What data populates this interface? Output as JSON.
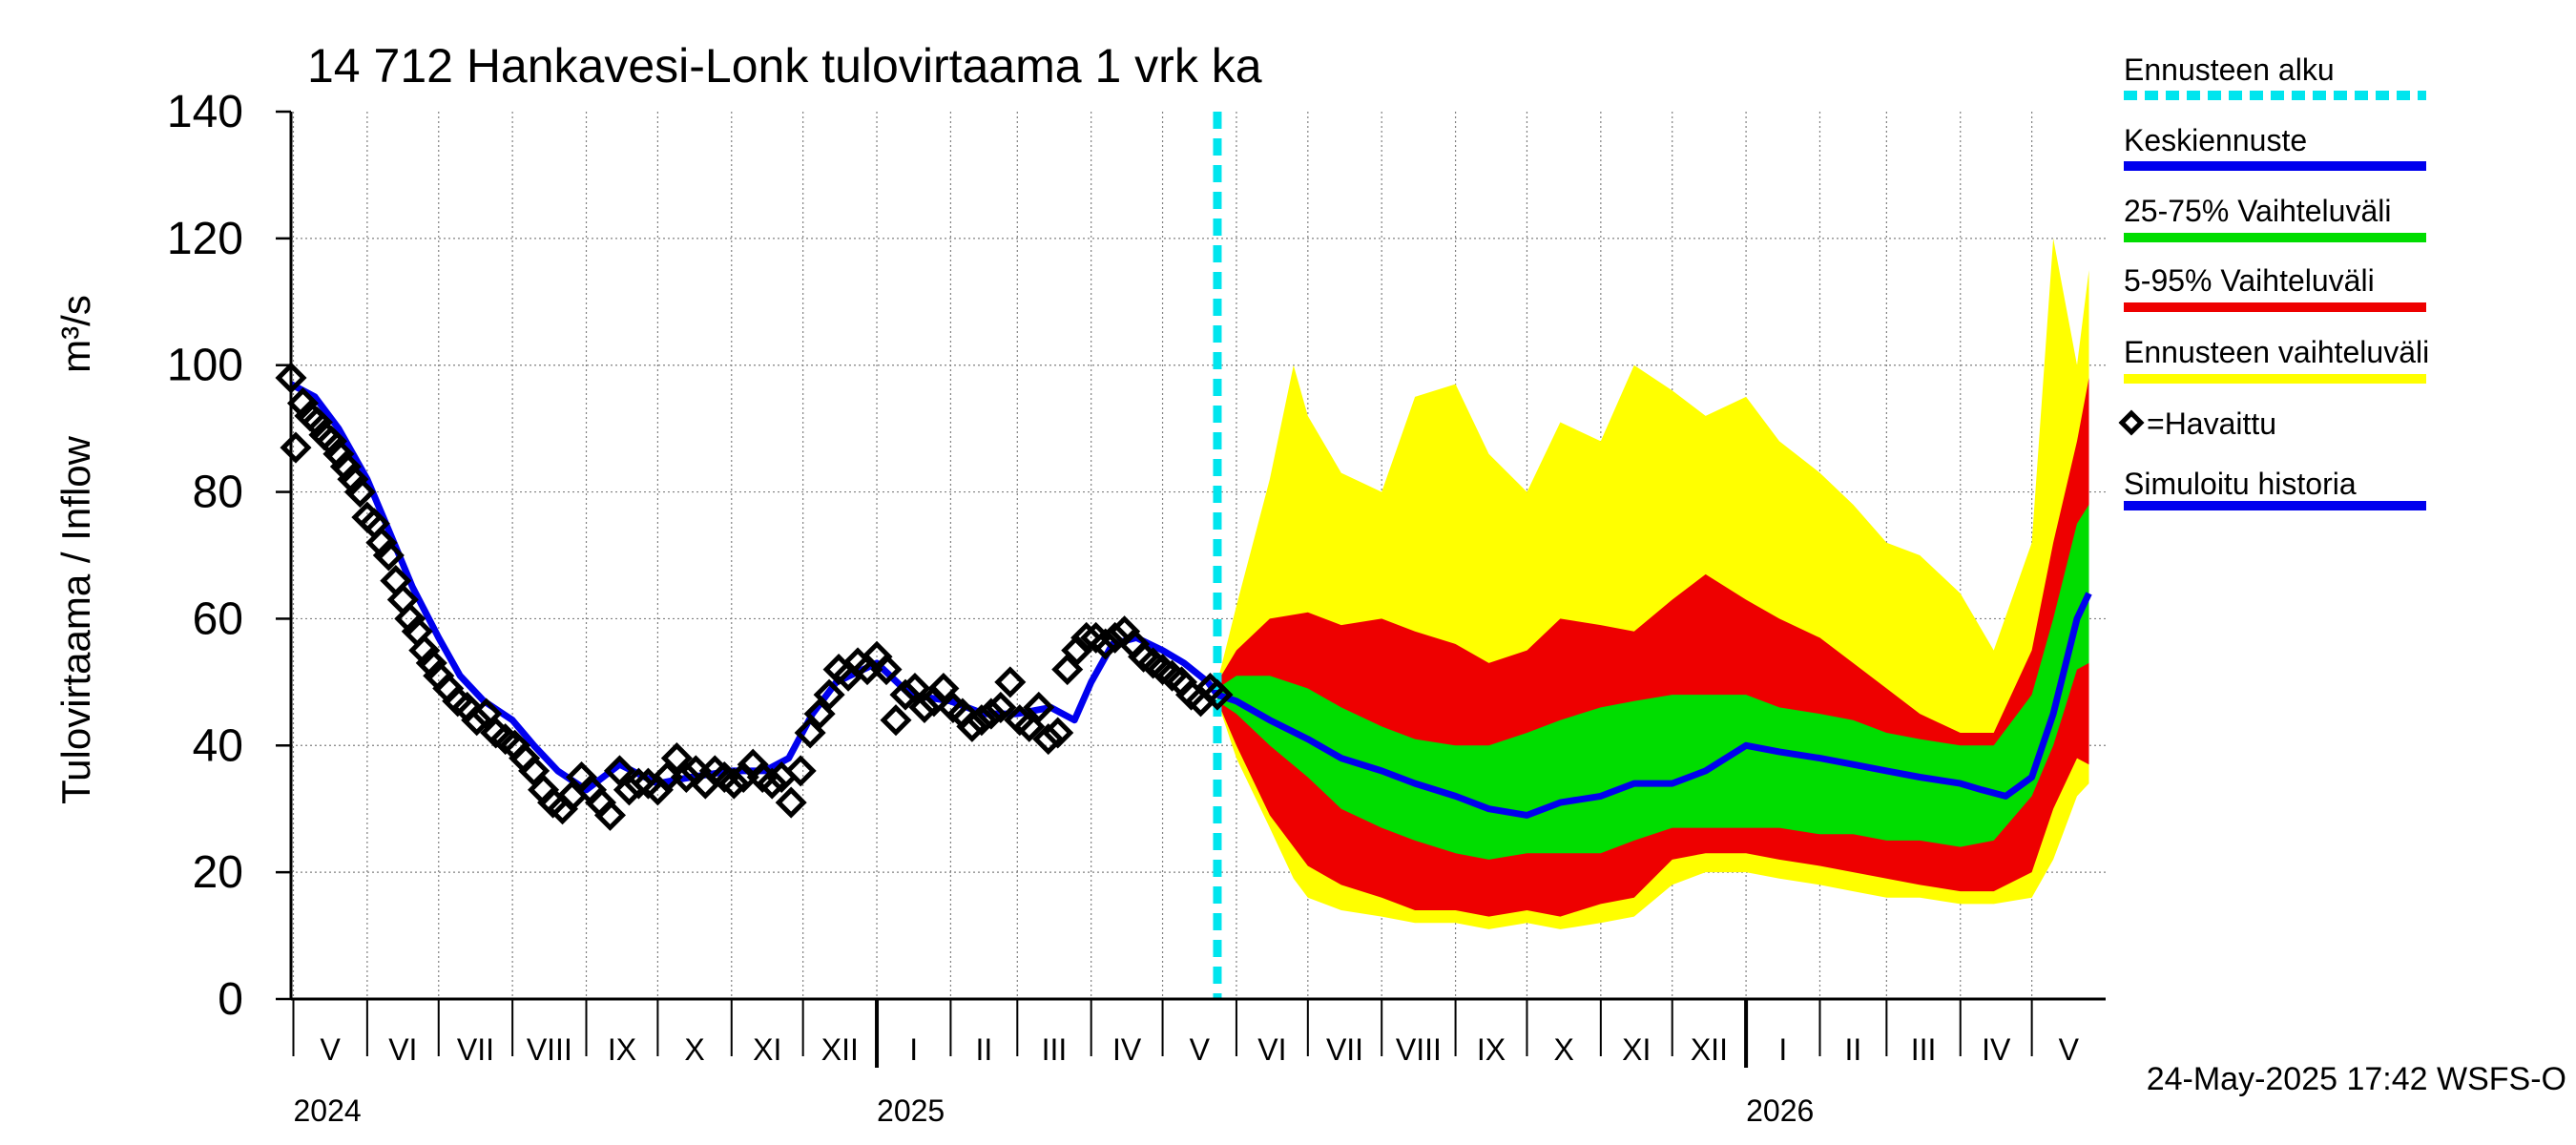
{
  "chart_data": {
    "type": "area",
    "title": "14 712 Hankavesi-Lonk tulovirtaama 1 vrk ka",
    "ylabel": "Tulovirtaama / Inflow",
    "yunit": "m³/s",
    "ylim": [
      0,
      140
    ],
    "yticks": [
      0,
      20,
      40,
      60,
      80,
      100,
      120,
      140
    ],
    "xlim": [
      "2024-04-30",
      "2026-06-01"
    ],
    "grid": true,
    "forecast_start": "2025-05-24",
    "month_labels": [
      {
        "label": "V",
        "start": "2024-05-01",
        "end": "2024-06-01"
      },
      {
        "label": "VI",
        "start": "2024-06-01",
        "end": "2024-07-01"
      },
      {
        "label": "VII",
        "start": "2024-07-01",
        "end": "2024-08-01"
      },
      {
        "label": "VIII",
        "start": "2024-08-01",
        "end": "2024-09-01"
      },
      {
        "label": "IX",
        "start": "2024-09-01",
        "end": "2024-10-01"
      },
      {
        "label": "X",
        "start": "2024-10-01",
        "end": "2024-11-01"
      },
      {
        "label": "XI",
        "start": "2024-11-01",
        "end": "2024-12-01"
      },
      {
        "label": "XII",
        "start": "2024-12-01",
        "end": "2025-01-01"
      },
      {
        "label": "I",
        "start": "2025-01-01",
        "end": "2025-02-01"
      },
      {
        "label": "II",
        "start": "2025-02-01",
        "end": "2025-03-01"
      },
      {
        "label": "III",
        "start": "2025-03-01",
        "end": "2025-04-01"
      },
      {
        "label": "IV",
        "start": "2025-04-01",
        "end": "2025-05-01"
      },
      {
        "label": "V",
        "start": "2025-05-01",
        "end": "2025-06-01"
      },
      {
        "label": "VI",
        "start": "2025-06-01",
        "end": "2025-07-01"
      },
      {
        "label": "VII",
        "start": "2025-07-01",
        "end": "2025-08-01"
      },
      {
        "label": "VIII",
        "start": "2025-08-01",
        "end": "2025-09-01"
      },
      {
        "label": "IX",
        "start": "2025-09-01",
        "end": "2025-10-01"
      },
      {
        "label": "X",
        "start": "2025-10-01",
        "end": "2025-11-01"
      },
      {
        "label": "XI",
        "start": "2025-11-01",
        "end": "2025-12-01"
      },
      {
        "label": "XII",
        "start": "2025-12-01",
        "end": "2026-01-01"
      },
      {
        "label": "I",
        "start": "2026-01-01",
        "end": "2026-02-01"
      },
      {
        "label": "II",
        "start": "2026-02-01",
        "end": "2026-03-01"
      },
      {
        "label": "III",
        "start": "2026-03-01",
        "end": "2026-04-01"
      },
      {
        "label": "IV",
        "start": "2026-04-01",
        "end": "2026-05-01"
      },
      {
        "label": "V",
        "start": "2026-05-01",
        "end": "2026-06-01"
      }
    ],
    "year_labels": [
      {
        "label": "2024",
        "date": "2024-05-01"
      },
      {
        "label": "2025",
        "date": "2025-01-01"
      },
      {
        "label": "2026",
        "date": "2026-01-01"
      }
    ],
    "legend": {
      "placement": "right",
      "items": [
        {
          "label": "Ennusteen alku",
          "color": "#00e5ee",
          "style": "dashed"
        },
        {
          "label": "Keskiennuste",
          "color": "#0000ee",
          "style": "solid"
        },
        {
          "label": "25-75% Vaihteluväli",
          "color": "#00dd00",
          "style": "solid"
        },
        {
          "label": "5-95% Vaihteluväli",
          "color": "#ee0000",
          "style": "solid"
        },
        {
          "label": "Ennusteen vaihteluväli",
          "color": "#ffff00",
          "style": "solid"
        },
        {
          "label": "=Havaittu",
          "color": "#000000",
          "style": "marker"
        },
        {
          "label": "Simuloitu historia",
          "color": "#0000ee",
          "style": "solid"
        }
      ]
    },
    "series": [
      {
        "name": "Ennusteen vaihteluväli",
        "color": "#ffff00",
        "kind": "band",
        "x": [
          "2025-05-24",
          "2025-06-01",
          "2025-06-15",
          "2025-06-25",
          "2025-07-01",
          "2025-07-15",
          "2025-08-01",
          "2025-08-15",
          "2025-09-01",
          "2025-09-15",
          "2025-10-01",
          "2025-10-15",
          "2025-11-01",
          "2025-11-15",
          "2025-12-01",
          "2025-12-15",
          "2026-01-01",
          "2026-01-15",
          "2026-02-01",
          "2026-02-15",
          "2026-03-01",
          "2026-03-15",
          "2026-04-01",
          "2026-04-15",
          "2026-05-01",
          "2026-05-10",
          "2026-05-20",
          "2026-05-25"
        ],
        "low": [
          47,
          38,
          27,
          19,
          16,
          14,
          13,
          12,
          12,
          11,
          12,
          11,
          12,
          13,
          18,
          20,
          20,
          19,
          18,
          17,
          16,
          16,
          15,
          15,
          16,
          22,
          32,
          34
        ],
        "high": [
          50,
          62,
          82,
          100,
          92,
          83,
          80,
          95,
          97,
          86,
          80,
          91,
          88,
          100,
          96,
          92,
          95,
          88,
          83,
          78,
          72,
          70,
          64,
          55,
          72,
          120,
          100,
          115
        ]
      },
      {
        "name": "5-95% Vaihteluväli",
        "color": "#ee0000",
        "kind": "band",
        "x": [
          "2025-05-24",
          "2025-06-01",
          "2025-06-15",
          "2025-07-01",
          "2025-07-15",
          "2025-08-01",
          "2025-08-15",
          "2025-09-01",
          "2025-09-15",
          "2025-10-01",
          "2025-10-15",
          "2025-11-01",
          "2025-11-15",
          "2025-12-01",
          "2025-12-15",
          "2026-01-01",
          "2026-01-15",
          "2026-02-01",
          "2026-02-15",
          "2026-03-01",
          "2026-03-15",
          "2026-04-01",
          "2026-04-15",
          "2026-05-01",
          "2026-05-10",
          "2026-05-20",
          "2026-05-25"
        ],
        "low": [
          47,
          40,
          29,
          21,
          18,
          16,
          14,
          14,
          13,
          14,
          13,
          15,
          16,
          22,
          23,
          23,
          22,
          21,
          20,
          19,
          18,
          17,
          17,
          20,
          30,
          38,
          37
        ],
        "high": [
          50,
          55,
          60,
          61,
          59,
          60,
          58,
          56,
          53,
          55,
          60,
          59,
          58,
          63,
          67,
          63,
          60,
          57,
          53,
          49,
          45,
          42,
          42,
          55,
          72,
          88,
          98
        ]
      },
      {
        "name": "25-75% Vaihteluväli",
        "color": "#00dd00",
        "kind": "band",
        "x": [
          "2025-05-24",
          "2025-06-01",
          "2025-06-15",
          "2025-07-01",
          "2025-07-15",
          "2025-08-01",
          "2025-08-15",
          "2025-09-01",
          "2025-09-15",
          "2025-10-01",
          "2025-10-15",
          "2025-11-01",
          "2025-11-15",
          "2025-12-01",
          "2025-12-15",
          "2026-01-01",
          "2026-01-15",
          "2026-02-01",
          "2026-02-15",
          "2026-03-01",
          "2026-03-15",
          "2026-04-01",
          "2026-04-15",
          "2026-05-01",
          "2026-05-10",
          "2026-05-20",
          "2026-05-25"
        ],
        "low": [
          47,
          45,
          40,
          35,
          30,
          27,
          25,
          23,
          22,
          23,
          23,
          23,
          25,
          27,
          27,
          27,
          27,
          26,
          26,
          25,
          25,
          24,
          25,
          32,
          40,
          52,
          53
        ],
        "high": [
          49,
          51,
          51,
          49,
          46,
          43,
          41,
          40,
          40,
          42,
          44,
          46,
          47,
          48,
          48,
          48,
          46,
          45,
          44,
          42,
          41,
          40,
          40,
          48,
          60,
          75,
          78
        ]
      },
      {
        "name": "Keskiennuste",
        "color": "#0000ee",
        "kind": "line",
        "x": [
          "2025-05-24",
          "2025-06-01",
          "2025-06-15",
          "2025-07-01",
          "2025-07-15",
          "2025-08-01",
          "2025-08-15",
          "2025-09-01",
          "2025-09-15",
          "2025-10-01",
          "2025-10-15",
          "2025-11-01",
          "2025-11-15",
          "2025-12-01",
          "2025-12-15",
          "2026-01-01",
          "2026-01-15",
          "2026-02-01",
          "2026-02-15",
          "2026-03-01",
          "2026-03-15",
          "2026-04-01",
          "2026-04-10",
          "2026-04-20",
          "2026-05-01",
          "2026-05-10",
          "2026-05-20",
          "2026-05-25"
        ],
        "y": [
          48,
          47,
          44,
          41,
          38,
          36,
          34,
          32,
          30,
          29,
          31,
          32,
          34,
          34,
          36,
          40,
          39,
          38,
          37,
          36,
          35,
          34,
          33,
          32,
          35,
          45,
          60,
          64
        ]
      },
      {
        "name": "Simuloitu historia",
        "color": "#0000ee",
        "kind": "line",
        "x": [
          "2024-04-30",
          "2024-05-10",
          "2024-05-20",
          "2024-06-01",
          "2024-06-10",
          "2024-06-20",
          "2024-07-01",
          "2024-07-10",
          "2024-07-20",
          "2024-08-01",
          "2024-08-10",
          "2024-08-20",
          "2024-09-01",
          "2024-09-15",
          "2024-10-01",
          "2024-10-15",
          "2024-11-01",
          "2024-11-15",
          "2024-11-25",
          "2024-12-05",
          "2024-12-15",
          "2025-01-01",
          "2025-01-15",
          "2025-02-01",
          "2025-02-15",
          "2025-03-01",
          "2025-03-15",
          "2025-03-25",
          "2025-04-01",
          "2025-04-10",
          "2025-04-20",
          "2025-05-01",
          "2025-05-10",
          "2025-05-20",
          "2025-05-24"
        ],
        "y": [
          97,
          95,
          90,
          82,
          74,
          65,
          57,
          51,
          47,
          44,
          40,
          36,
          33,
          37,
          34,
          35,
          36,
          36,
          38,
          45,
          50,
          53,
          48,
          47,
          45,
          45,
          46,
          44,
          50,
          56,
          57,
          55,
          53,
          50,
          48
        ]
      },
      {
        "name": "Havaittu",
        "color": "#000000",
        "kind": "markers",
        "x": [
          "2024-04-30",
          "2024-05-02",
          "2024-05-05",
          "2024-05-08",
          "2024-05-11",
          "2024-05-14",
          "2024-05-17",
          "2024-05-20",
          "2024-05-23",
          "2024-05-26",
          "2024-05-29",
          "2024-06-01",
          "2024-06-04",
          "2024-06-07",
          "2024-06-10",
          "2024-06-13",
          "2024-06-16",
          "2024-06-19",
          "2024-06-22",
          "2024-06-25",
          "2024-06-28",
          "2024-07-01",
          "2024-07-05",
          "2024-07-09",
          "2024-07-13",
          "2024-07-17",
          "2024-07-21",
          "2024-07-25",
          "2024-07-29",
          "2024-08-02",
          "2024-08-06",
          "2024-08-10",
          "2024-08-14",
          "2024-08-18",
          "2024-08-22",
          "2024-08-26",
          "2024-08-30",
          "2024-09-03",
          "2024-09-07",
          "2024-09-11",
          "2024-09-15",
          "2024-09-19",
          "2024-09-23",
          "2024-09-27",
          "2024-10-01",
          "2024-10-05",
          "2024-10-09",
          "2024-10-13",
          "2024-10-17",
          "2024-10-21",
          "2024-10-25",
          "2024-10-29",
          "2024-11-02",
          "2024-11-06",
          "2024-11-10",
          "2024-11-14",
          "2024-11-18",
          "2024-11-22",
          "2024-11-26",
          "2024-11-30",
          "2024-12-04",
          "2024-12-08",
          "2024-12-12",
          "2024-12-16",
          "2024-12-20",
          "2024-12-24",
          "2024-12-28",
          "2025-01-01",
          "2025-01-05",
          "2025-01-09",
          "2025-01-13",
          "2025-01-17",
          "2025-01-21",
          "2025-01-25",
          "2025-01-29",
          "2025-02-02",
          "2025-02-06",
          "2025-02-10",
          "2025-02-14",
          "2025-02-18",
          "2025-02-22",
          "2025-02-26",
          "2025-03-02",
          "2025-03-06",
          "2025-03-10",
          "2025-03-14",
          "2025-03-18",
          "2025-03-22",
          "2025-03-26",
          "2025-03-30",
          "2025-04-03",
          "2025-04-07",
          "2025-04-11",
          "2025-04-15",
          "2025-04-19",
          "2025-04-23",
          "2025-04-27",
          "2025-05-01",
          "2025-05-05",
          "2025-05-09",
          "2025-05-13",
          "2025-05-17",
          "2025-05-21",
          "2025-05-24"
        ],
        "y": [
          98,
          87,
          94,
          92,
          91,
          89,
          88,
          86,
          84,
          82,
          80,
          76,
          75,
          72,
          70,
          66,
          63,
          60,
          58,
          55,
          53,
          51,
          49,
          47,
          46,
          44,
          45,
          42,
          41,
          40,
          38,
          36,
          33,
          31,
          30,
          32,
          35,
          33,
          31,
          29,
          36,
          33,
          34,
          34,
          33,
          35,
          38,
          35,
          36,
          34,
          36,
          35,
          34,
          35,
          37,
          35,
          34,
          35,
          31,
          36,
          42,
          45,
          48,
          52,
          51,
          53,
          52,
          54,
          52,
          44,
          48,
          49,
          46,
          47,
          49,
          46,
          45,
          43,
          44,
          45,
          46,
          50,
          44,
          43,
          46,
          41,
          42,
          52,
          55,
          57,
          57,
          56,
          57,
          58,
          56,
          54,
          53,
          52,
          51,
          50,
          48,
          47,
          49,
          48
        ]
      }
    ],
    "timestamp": "24-May-2025 17:42 WSFS-O"
  }
}
